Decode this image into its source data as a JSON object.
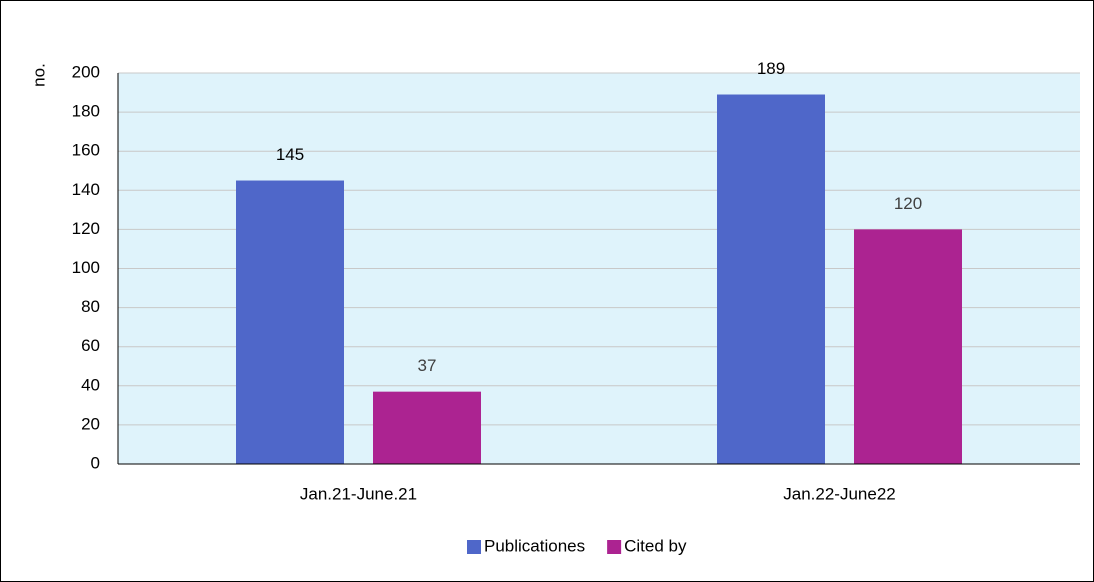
{
  "chart_data": {
    "type": "bar",
    "y_label": "no.",
    "categories": [
      "Jan.21-June.21",
      "Jan.22-June22"
    ],
    "series": [
      {
        "name": "Publicationes",
        "color": "#4f67c9",
        "values": [
          145,
          189
        ]
      },
      {
        "name": "Cited by",
        "color": "#ac2391",
        "values": [
          37,
          120
        ]
      }
    ],
    "ylim": [
      0,
      200
    ],
    "yticks": [
      0,
      20,
      40,
      60,
      80,
      100,
      120,
      140,
      160,
      180,
      200
    ],
    "grid": true,
    "legend": "bottom"
  }
}
